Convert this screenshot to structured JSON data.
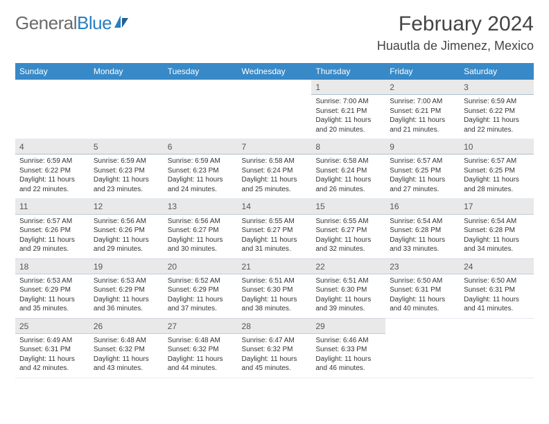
{
  "logo": {
    "text_part1": "General",
    "text_part2": "Blue"
  },
  "title": "February 2024",
  "location": "Huautla de Jimenez, Mexico",
  "colors": {
    "header_bg": "#3889c7",
    "daynum_bg": "#e9e9e9",
    "text": "#333333"
  },
  "day_headers": [
    "Sunday",
    "Monday",
    "Tuesday",
    "Wednesday",
    "Thursday",
    "Friday",
    "Saturday"
  ],
  "weeks": [
    [
      null,
      null,
      null,
      null,
      {
        "n": "1",
        "sr": "Sunrise: 7:00 AM",
        "ss": "Sunset: 6:21 PM",
        "dl1": "Daylight: 11 hours",
        "dl2": "and 20 minutes."
      },
      {
        "n": "2",
        "sr": "Sunrise: 7:00 AM",
        "ss": "Sunset: 6:21 PM",
        "dl1": "Daylight: 11 hours",
        "dl2": "and 21 minutes."
      },
      {
        "n": "3",
        "sr": "Sunrise: 6:59 AM",
        "ss": "Sunset: 6:22 PM",
        "dl1": "Daylight: 11 hours",
        "dl2": "and 22 minutes."
      }
    ],
    [
      {
        "n": "4",
        "sr": "Sunrise: 6:59 AM",
        "ss": "Sunset: 6:22 PM",
        "dl1": "Daylight: 11 hours",
        "dl2": "and 22 minutes."
      },
      {
        "n": "5",
        "sr": "Sunrise: 6:59 AM",
        "ss": "Sunset: 6:23 PM",
        "dl1": "Daylight: 11 hours",
        "dl2": "and 23 minutes."
      },
      {
        "n": "6",
        "sr": "Sunrise: 6:59 AM",
        "ss": "Sunset: 6:23 PM",
        "dl1": "Daylight: 11 hours",
        "dl2": "and 24 minutes."
      },
      {
        "n": "7",
        "sr": "Sunrise: 6:58 AM",
        "ss": "Sunset: 6:24 PM",
        "dl1": "Daylight: 11 hours",
        "dl2": "and 25 minutes."
      },
      {
        "n": "8",
        "sr": "Sunrise: 6:58 AM",
        "ss": "Sunset: 6:24 PM",
        "dl1": "Daylight: 11 hours",
        "dl2": "and 26 minutes."
      },
      {
        "n": "9",
        "sr": "Sunrise: 6:57 AM",
        "ss": "Sunset: 6:25 PM",
        "dl1": "Daylight: 11 hours",
        "dl2": "and 27 minutes."
      },
      {
        "n": "10",
        "sr": "Sunrise: 6:57 AM",
        "ss": "Sunset: 6:25 PM",
        "dl1": "Daylight: 11 hours",
        "dl2": "and 28 minutes."
      }
    ],
    [
      {
        "n": "11",
        "sr": "Sunrise: 6:57 AM",
        "ss": "Sunset: 6:26 PM",
        "dl1": "Daylight: 11 hours",
        "dl2": "and 29 minutes."
      },
      {
        "n": "12",
        "sr": "Sunrise: 6:56 AM",
        "ss": "Sunset: 6:26 PM",
        "dl1": "Daylight: 11 hours",
        "dl2": "and 29 minutes."
      },
      {
        "n": "13",
        "sr": "Sunrise: 6:56 AM",
        "ss": "Sunset: 6:27 PM",
        "dl1": "Daylight: 11 hours",
        "dl2": "and 30 minutes."
      },
      {
        "n": "14",
        "sr": "Sunrise: 6:55 AM",
        "ss": "Sunset: 6:27 PM",
        "dl1": "Daylight: 11 hours",
        "dl2": "and 31 minutes."
      },
      {
        "n": "15",
        "sr": "Sunrise: 6:55 AM",
        "ss": "Sunset: 6:27 PM",
        "dl1": "Daylight: 11 hours",
        "dl2": "and 32 minutes."
      },
      {
        "n": "16",
        "sr": "Sunrise: 6:54 AM",
        "ss": "Sunset: 6:28 PM",
        "dl1": "Daylight: 11 hours",
        "dl2": "and 33 minutes."
      },
      {
        "n": "17",
        "sr": "Sunrise: 6:54 AM",
        "ss": "Sunset: 6:28 PM",
        "dl1": "Daylight: 11 hours",
        "dl2": "and 34 minutes."
      }
    ],
    [
      {
        "n": "18",
        "sr": "Sunrise: 6:53 AM",
        "ss": "Sunset: 6:29 PM",
        "dl1": "Daylight: 11 hours",
        "dl2": "and 35 minutes."
      },
      {
        "n": "19",
        "sr": "Sunrise: 6:53 AM",
        "ss": "Sunset: 6:29 PM",
        "dl1": "Daylight: 11 hours",
        "dl2": "and 36 minutes."
      },
      {
        "n": "20",
        "sr": "Sunrise: 6:52 AM",
        "ss": "Sunset: 6:29 PM",
        "dl1": "Daylight: 11 hours",
        "dl2": "and 37 minutes."
      },
      {
        "n": "21",
        "sr": "Sunrise: 6:51 AM",
        "ss": "Sunset: 6:30 PM",
        "dl1": "Daylight: 11 hours",
        "dl2": "and 38 minutes."
      },
      {
        "n": "22",
        "sr": "Sunrise: 6:51 AM",
        "ss": "Sunset: 6:30 PM",
        "dl1": "Daylight: 11 hours",
        "dl2": "and 39 minutes."
      },
      {
        "n": "23",
        "sr": "Sunrise: 6:50 AM",
        "ss": "Sunset: 6:31 PM",
        "dl1": "Daylight: 11 hours",
        "dl2": "and 40 minutes."
      },
      {
        "n": "24",
        "sr": "Sunrise: 6:50 AM",
        "ss": "Sunset: 6:31 PM",
        "dl1": "Daylight: 11 hours",
        "dl2": "and 41 minutes."
      }
    ],
    [
      {
        "n": "25",
        "sr": "Sunrise: 6:49 AM",
        "ss": "Sunset: 6:31 PM",
        "dl1": "Daylight: 11 hours",
        "dl2": "and 42 minutes."
      },
      {
        "n": "26",
        "sr": "Sunrise: 6:48 AM",
        "ss": "Sunset: 6:32 PM",
        "dl1": "Daylight: 11 hours",
        "dl2": "and 43 minutes."
      },
      {
        "n": "27",
        "sr": "Sunrise: 6:48 AM",
        "ss": "Sunset: 6:32 PM",
        "dl1": "Daylight: 11 hours",
        "dl2": "and 44 minutes."
      },
      {
        "n": "28",
        "sr": "Sunrise: 6:47 AM",
        "ss": "Sunset: 6:32 PM",
        "dl1": "Daylight: 11 hours",
        "dl2": "and 45 minutes."
      },
      {
        "n": "29",
        "sr": "Sunrise: 6:46 AM",
        "ss": "Sunset: 6:33 PM",
        "dl1": "Daylight: 11 hours",
        "dl2": "and 46 minutes."
      },
      null,
      null
    ]
  ]
}
